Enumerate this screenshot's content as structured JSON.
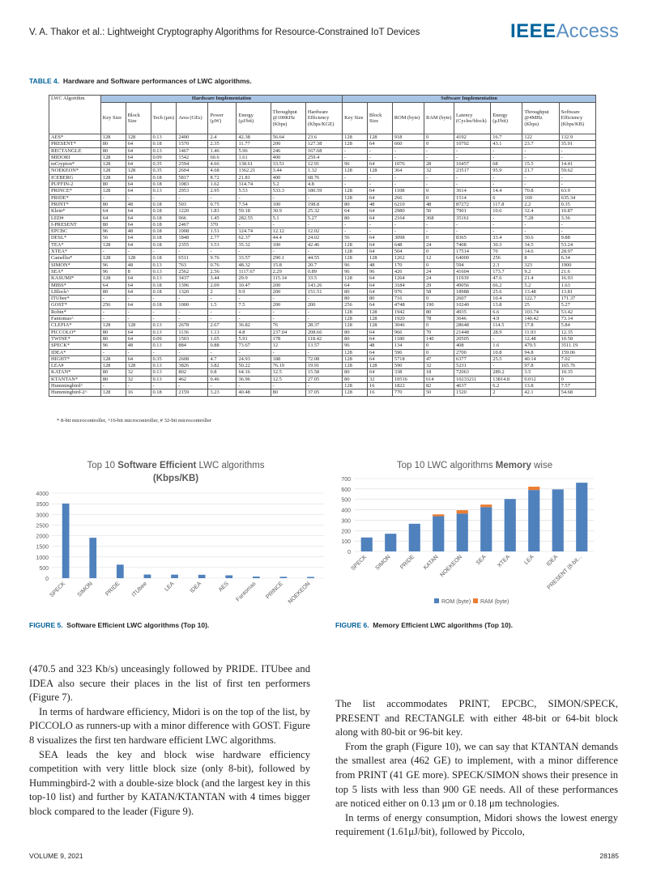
{
  "header": {
    "running_title": "V. A. Thakor et al.: Lightweight Cryptography Algorithms for Resource-Constrained IoT Devices",
    "logo_bold": "IEEE",
    "logo_light": "Access"
  },
  "table": {
    "label": "TABLE 4.",
    "caption": "Hardware and Software performances of LWC algorithms.",
    "group_hw": "Hardware Implementation",
    "group_sw": "Software Implementation",
    "columns": [
      "LWC Algorithm",
      "Key Size",
      "Block Size",
      "Tech (μm)",
      "Area (GEs)",
      "Power (μW)",
      "Energy (μJ/bit)",
      "Throughput @100KHz (Kbps)",
      "Hardware Efficiency (Kbps/KGE)",
      "Key Size",
      "Block Size",
      "ROM (byte)",
      "RAM (byte)",
      "Latency (Cycles/block)",
      "Energy (μJ/bit)",
      "Throughput @4MHz (Kbps)",
      "Software Efficiency (Kbps/KB)"
    ],
    "rows": [
      [
        "AES*",
        "128",
        "128",
        "0.13",
        "2400",
        "2.4",
        "42.38",
        "56.64",
        "23.6",
        "128",
        "128",
        "918",
        "0",
        "4192",
        "16.7",
        "122",
        "132.9"
      ],
      [
        "PRESENT*",
        "80",
        "64",
        "0.18",
        "1570",
        "2.35",
        "11.77",
        "200",
        "127.38",
        "128",
        "64",
        "660",
        "0",
        "10792",
        "43.1",
        "23.7",
        "35.91"
      ],
      [
        "RECTANGLE",
        "80",
        "64",
        "0.13",
        "1467",
        "1.46",
        "5.96",
        "246",
        "167.68",
        "-",
        "-",
        "-",
        "-",
        "-",
        "-",
        "-",
        "-"
      ],
      [
        "MIDORI",
        "128",
        "64",
        "0.09",
        "1542",
        "60.6",
        "1.61",
        "400",
        "259.4",
        "-",
        "-",
        "-",
        "-",
        "-",
        "-",
        "-",
        "-"
      ],
      [
        "mCrypton*",
        "128",
        "64",
        "0.35",
        "2594",
        "4.66",
        "138.61",
        "33.51",
        "12.91",
        "96",
        "64",
        "1076",
        "28",
        "16457",
        "68",
        "15.5",
        "14.41"
      ],
      [
        "NOEKEON*",
        "128",
        "128",
        "0.35",
        "2604",
        "4.68",
        "1362.21",
        "3.44",
        "1.32",
        "128",
        "128",
        "364",
        "32",
        "23517",
        "95.9",
        "21.7",
        "59.62"
      ],
      [
        "ICEBERG",
        "128",
        "64",
        "0.18",
        "5817",
        "8.72",
        "21.81",
        "400",
        "68.76",
        "-",
        "-",
        "-",
        "-",
        "-",
        "-",
        "-",
        "-"
      ],
      [
        "PUFFIN-2",
        "80",
        "64",
        "0.18",
        "1083",
        "1.62",
        "314.74",
        "5.2",
        "4.8",
        "-",
        "-",
        "-",
        "-",
        "-",
        "-",
        "-",
        "-"
      ],
      [
        "PRINCE*",
        "128",
        "64",
        "0.13",
        "2953",
        "2.95",
        "5.53",
        "533.3",
        "180.59",
        "128",
        "64",
        "1108",
        "0",
        "3614",
        "14.4",
        "70.8",
        "63.9"
      ],
      [
        "PRIDE*",
        "-",
        "-",
        "-",
        "-",
        "-",
        "-",
        "-",
        "-",
        "128",
        "64",
        "266",
        "0",
        "1514",
        "6",
        "169",
        "635.34"
      ],
      [
        "PRINT*",
        "80",
        "48",
        "0.18",
        "503",
        "0.75",
        "7.54",
        "100",
        "198.8",
        "80",
        "48",
        "6210",
        "48",
        "87272",
        "117.8",
        "2.2",
        "0.35"
      ],
      [
        "Klein*",
        "64",
        "64",
        "0.18",
        "1220",
        "1.83",
        "59.18",
        "30.9",
        "25.32",
        "64",
        "64",
        "2980",
        "50",
        "7901",
        "10.6",
        "32.4",
        "10.87"
      ],
      [
        "LED#",
        "64",
        "64",
        "0.18",
        "966",
        "1.45",
        "282.55",
        "5.1",
        "5.27",
        "80",
        "64",
        "2164",
        "368",
        "35161",
        "-",
        "7.28",
        "3.36"
      ],
      [
        "I-PRESENT",
        "80",
        "64",
        "0.18",
        "2467",
        "370",
        "-",
        "-",
        "-",
        "-",
        "-",
        "-",
        "-",
        "-",
        "-",
        "-",
        "-"
      ],
      [
        "EPCBC",
        "96",
        "48",
        "0.18",
        "1008",
        "1.51",
        "124.74",
        "12.12",
        "12.02",
        "-",
        "-",
        "-",
        "-",
        "-",
        "-",
        "-",
        "-"
      ],
      [
        "DESL*",
        "56",
        "64",
        "0.18",
        "1848",
        "2.77",
        "62.37",
        "44.4",
        "24.02",
        "56",
        "64",
        "3098",
        "0",
        "8365",
        "33.4",
        "30.6",
        "9.88"
      ],
      [
        "TEA*",
        "128",
        "64",
        "0.18",
        "2355",
        "3.53",
        "35.32",
        "100",
        "42.46",
        "128",
        "64",
        "648",
        "24",
        "7408",
        "30.3",
        "34.5",
        "53.24"
      ],
      [
        "XTEA*",
        "-",
        "-",
        "-",
        "-",
        "-",
        "-",
        "-",
        "-",
        "128",
        "64",
        "504",
        "0",
        "17514",
        "70",
        "14.6",
        "28.97"
      ],
      [
        "Camellia*",
        "128",
        "128",
        "0.18",
        "6511",
        "9.76",
        "33.57",
        "290.1",
        "44.55",
        "128",
        "128",
        "1262",
        "12",
        "64000",
        "256",
        "8",
        "6.34"
      ],
      [
        "SIMON*",
        "96",
        "48",
        "0.13",
        "763",
        "0.76",
        "48.32",
        "15.8",
        "20.7",
        "96",
        "48",
        "170",
        "0",
        "594",
        "2.3",
        "323",
        "1900"
      ],
      [
        "SEA*",
        "96",
        "8",
        "0.13",
        "2562",
        "2.56",
        "1117.67",
        "2.29",
        "0.89",
        "96",
        "96",
        "426",
        "24",
        "41604",
        "173.7",
        "9.2",
        "21.6"
      ],
      [
        "KASUMI*",
        "128",
        "64",
        "0.13",
        "3437",
        "3.44",
        "29.9",
        "115.14",
        "33.5",
        "128",
        "64",
        "1264",
        "24",
        "11939",
        "47.6",
        "21.4",
        "16.93"
      ],
      [
        "MIBS*",
        "64",
        "64",
        "0.18",
        "1396",
        "2.09",
        "10.47",
        "200",
        "143.26",
        "64",
        "64",
        "3184",
        "29",
        "49056",
        "66.2",
        "5.2",
        "1.63"
      ],
      [
        "LBlock^",
        "80",
        "64",
        "0.18",
        "1320",
        "2",
        "9.9",
        "200",
        "151.51",
        "80",
        "64",
        "976",
        "58",
        "18988",
        "25.6",
        "13.48",
        "13.81"
      ],
      [
        "ITUbee*",
        "-",
        "-",
        "-",
        "-",
        "-",
        "-",
        "-",
        "-",
        "80",
        "80",
        "716",
        "0",
        "2607",
        "10.4",
        "122.7",
        "171.37"
      ],
      [
        "GOST*",
        "256",
        "64",
        "0.18",
        "1000",
        "1.5",
        "7.5",
        "200",
        "200",
        "256",
        "64",
        "4748",
        "190",
        "10240",
        "13.8",
        "25",
        "5.27"
      ],
      [
        "Robin*",
        "-",
        "-",
        "-",
        "-",
        "-",
        "-",
        "-",
        "-",
        "128",
        "128",
        "1942",
        "80",
        "4935",
        "6.6",
        "103.74",
        "53.42"
      ],
      [
        "Fantomas^",
        "-",
        "-",
        "-",
        "-",
        "-",
        "-",
        "-",
        "-",
        "128",
        "128",
        "1920",
        "78",
        "3646",
        "4.9",
        "140.42",
        "73.14"
      ],
      [
        "CLEFIA*",
        "128",
        "128",
        "0.13",
        "2678",
        "2.67",
        "36.82",
        "76",
        "28.37",
        "128",
        "128",
        "3046",
        "0",
        "28648",
        "114.5",
        "17.8",
        "5.84"
      ],
      [
        "PICCOLO*",
        "80",
        "64",
        "0.13",
        "1136",
        "1.13",
        "4.8",
        "237.04",
        "208.66",
        "80",
        "64",
        "966",
        "70",
        "21448",
        "28.9",
        "11.93",
        "12.35"
      ],
      [
        "TWINE*",
        "80",
        "64",
        "0.09",
        "1503",
        "1.05",
        "5.91",
        "178",
        "118.42",
        "80",
        "64",
        "1180",
        "140",
        "20505",
        "-",
        "12.48",
        "10.58"
      ],
      [
        "SPECK*",
        "96",
        "48",
        "0.13",
        "884",
        "0.88",
        "73.67",
        "12",
        "13.57",
        "96",
        "48",
        "134",
        "0",
        "408",
        "1.6",
        "470.5",
        "3511.19"
      ],
      [
        "IDEA*",
        "-",
        "-",
        "-",
        "-",
        "-",
        "-",
        "-",
        "-",
        "128",
        "64",
        "596",
        "0",
        "2700",
        "10.8",
        "94.8",
        "159.06"
      ],
      [
        "HIGHT*",
        "128",
        "64",
        "0.35",
        "2608",
        "4.7",
        "24.93",
        "188",
        "72.08",
        "128",
        "64",
        "5718",
        "47",
        "6377",
        "25.5",
        "40.14",
        "7.02"
      ],
      [
        "LEA#",
        "128",
        "128",
        "0.13",
        "3826",
        "3.82",
        "50.22",
        "76.19",
        "19.91",
        "128",
        "128",
        "590",
        "32",
        "5231",
        "-",
        "97.8",
        "165.76"
      ],
      [
        "KATAN*",
        "80",
        "32",
        "0.13",
        "802",
        "0.8",
        "64.16",
        "12.5",
        "15.58",
        "80",
        "64",
        "338",
        "18",
        "72063",
        "289.2",
        "3.5",
        "10.35"
      ],
      [
        "KTANTAN*",
        "80",
        "32",
        "0.13",
        "462",
        "0.46",
        "36.96",
        "12.5",
        "27.05",
        "80",
        "32",
        "10516",
        "614",
        "10233211",
        "13814.8",
        "0.012",
        "0"
      ],
      [
        "Hummingbird^",
        "-",
        "-",
        "-",
        "-",
        "-",
        "-",
        "-",
        "-",
        "128",
        "16",
        "1822",
        "82",
        "4637",
        "6.2",
        "13.8",
        "7.57"
      ],
      [
        "Hummingbird-2^",
        "128",
        "16",
        "0.18",
        "2159",
        "3.23",
        "40.48",
        "80",
        "37.05",
        "128",
        "16",
        "770",
        "50",
        "1520",
        "2",
        "42.1",
        "54.68"
      ]
    ],
    "footnote": "* 8-bit microcontroller, ^16-bit microcontroller, # 32-bit microcontroller"
  },
  "figure5": {
    "label": "FIGURE 5.",
    "caption": "Software Efficient LWC algorithms (Top 10).",
    "title_pre": "Top 10 ",
    "title_bold": "Software Efficient",
    "title_post": " LWC algorithms",
    "title_line2": "(Kbps/KB)",
    "color": "#4f81bd"
  },
  "figure6": {
    "label": "FIGURE 6.",
    "caption": "Memory Efficient LWC algorithms (Top 10).",
    "title_pre": "Top 10 LWC algorithms ",
    "title_bold": "Memory",
    "title_post": " wise",
    "color_rom": "#4f81bd",
    "color_ram": "#ed7d31"
  },
  "chart_data": [
    {
      "type": "bar",
      "title": "Top 10 Software Efficient LWC algorithms (Kbps/KB)",
      "categories": [
        "SPECK",
        "SIMON",
        "PRIDE",
        "ITUbee",
        "LEA",
        "IDEA",
        "AES",
        "Fantomas",
        "PRINCE",
        "NOEKEON"
      ],
      "values": [
        3511.19,
        1900,
        635.34,
        171.37,
        165.76,
        159.06,
        132.9,
        73.14,
        63.9,
        59.62
      ],
      "ylim": [
        0,
        4000
      ],
      "yticks": [
        0,
        500,
        1000,
        1500,
        2000,
        2500,
        3000,
        3500,
        4000
      ],
      "grid": true,
      "xlabel": "",
      "ylabel": ""
    },
    {
      "type": "bar",
      "stacked": true,
      "title": "Top 10 LWC algorithms Memory wise",
      "categories": [
        "SPECK",
        "SIMON",
        "PRIDE",
        "KATAN",
        "NOEKEON",
        "SEA",
        "XTEA",
        "LEA",
        "IDEA",
        "PRESENT (8-bit..."
      ],
      "series": [
        {
          "name": "ROM (byte)",
          "values": [
            134,
            170,
            266,
            338,
            364,
            426,
            504,
            590,
            596,
            660
          ]
        },
        {
          "name": "RAM (byte)",
          "values": [
            0,
            0,
            0,
            18,
            32,
            24,
            0,
            32,
            0,
            0
          ]
        }
      ],
      "ylim": [
        0,
        700
      ],
      "yticks": [
        0,
        100,
        200,
        300,
        400,
        500,
        600,
        700
      ],
      "grid": true,
      "legend": "bottom",
      "xlabel": "",
      "ylabel": ""
    }
  ],
  "left_text": [
    "(470.5 and 323 Kb/s) unceasingly followed by PRIDE. ITUbee and IDEA also secure their places in the list of first ten performers (Figure 7).",
    "In terms of hardware efficiency, Midori is on the top of the list, by PICCOLO as runners-up with a minor difference with GOST. Figure 8 visualizes the first ten hardware efficient LWC algorithms.",
    "SEA leads the key and block wise hardware efficiency competition with very little block size (only 8-bit), followed by Hummingbird-2 with a double-size block (and the largest key in this top-10 list) and further by KATAN/KTANTAN with 4 times bigger block compared to the leader (Figure 9)."
  ],
  "right_text": [
    "The list accommodates PRINT, EPCBC, SIMON/SPECK, PRESENT and RECTANGLE with either 48-bit or 64-bit block along with 80-bit or 96-bit key.",
    "From the graph (Figure 10), we can say that KTANTAN demands the smallest area (462 GE) to implement, with a minor difference from PRINT (41 GE more). SPECK/SIMON shows their presence in top 5 lists with less than 900 GE needs. All of these performances are noticed either on 0.13 μm or 0.18 μm technologies.",
    "In terms of energy consumption, Midori shows the lowest energy requirement (1.61μJ/bit), followed by Piccolo,"
  ],
  "footer": {
    "volume": "VOLUME 9, 2021",
    "page": "28185"
  }
}
